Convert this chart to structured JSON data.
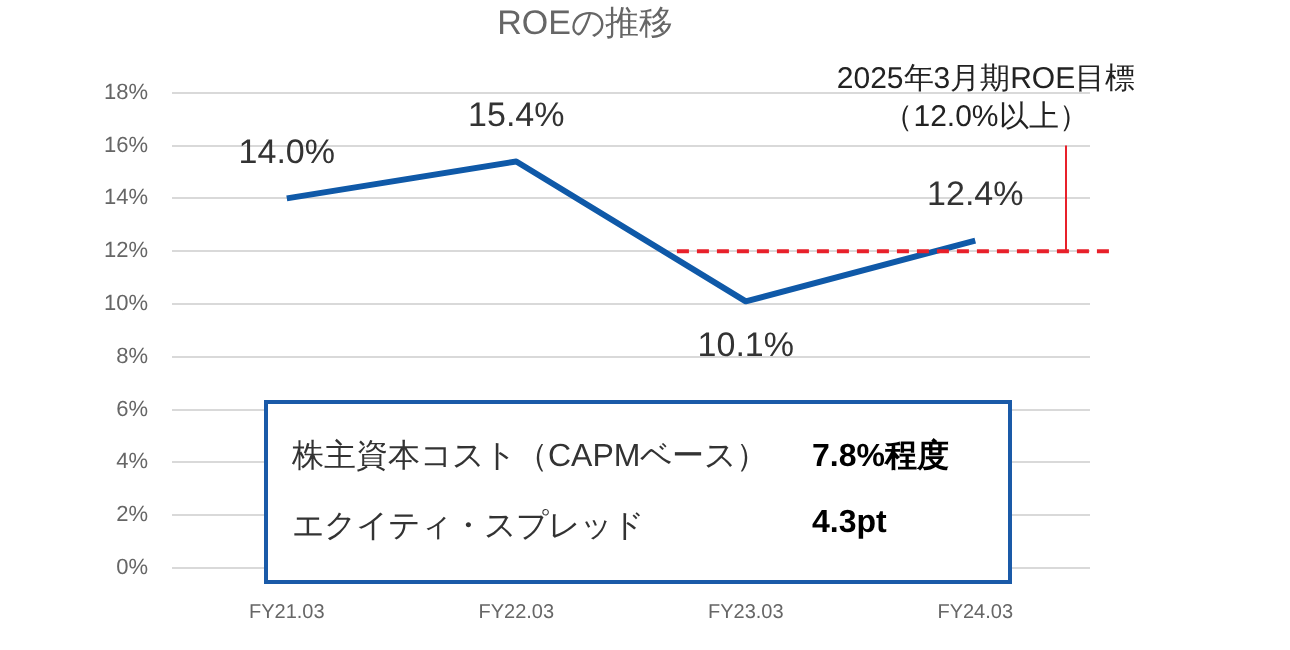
{
  "chart_data": {
    "type": "line",
    "title": "ROEの推移",
    "categories": [
      "FY21.03",
      "FY22.03",
      "FY23.03",
      "FY24.03"
    ],
    "series": [
      {
        "color": "#0f59a8",
        "values": [
          14.0,
          15.4,
          10.1,
          12.4
        ],
        "value_labels": [
          "14.0%",
          "15.4%",
          "10.1%",
          "12.4%"
        ]
      }
    ],
    "ylim": [
      0,
      18
    ],
    "yticks": [
      {
        "value": 0,
        "label": "0%"
      },
      {
        "value": 2,
        "label": "2%"
      },
      {
        "value": 4,
        "label": "4%"
      },
      {
        "value": 6,
        "label": "6%"
      },
      {
        "value": 8,
        "label": "8%"
      },
      {
        "value": 10,
        "label": "10%"
      },
      {
        "value": 12,
        "label": "12%"
      },
      {
        "value": 14,
        "label": "14%"
      },
      {
        "value": 16,
        "label": "16%"
      },
      {
        "value": 18,
        "label": "18%"
      }
    ],
    "grid": "y",
    "legend": false,
    "marker": "none",
    "line_style": "solid",
    "ref_lines": [
      {
        "axis": "y",
        "value": 12,
        "label": "2025年3月期ROE目標（12.0%以上）",
        "color": "#e8202a",
        "line_style": "dashed"
      }
    ],
    "annotations": [
      "株主資本コスト（CAPMベース）",
      "7.8%程度",
      "エクイティ・スプレッド",
      "4.3pt"
    ]
  }
}
